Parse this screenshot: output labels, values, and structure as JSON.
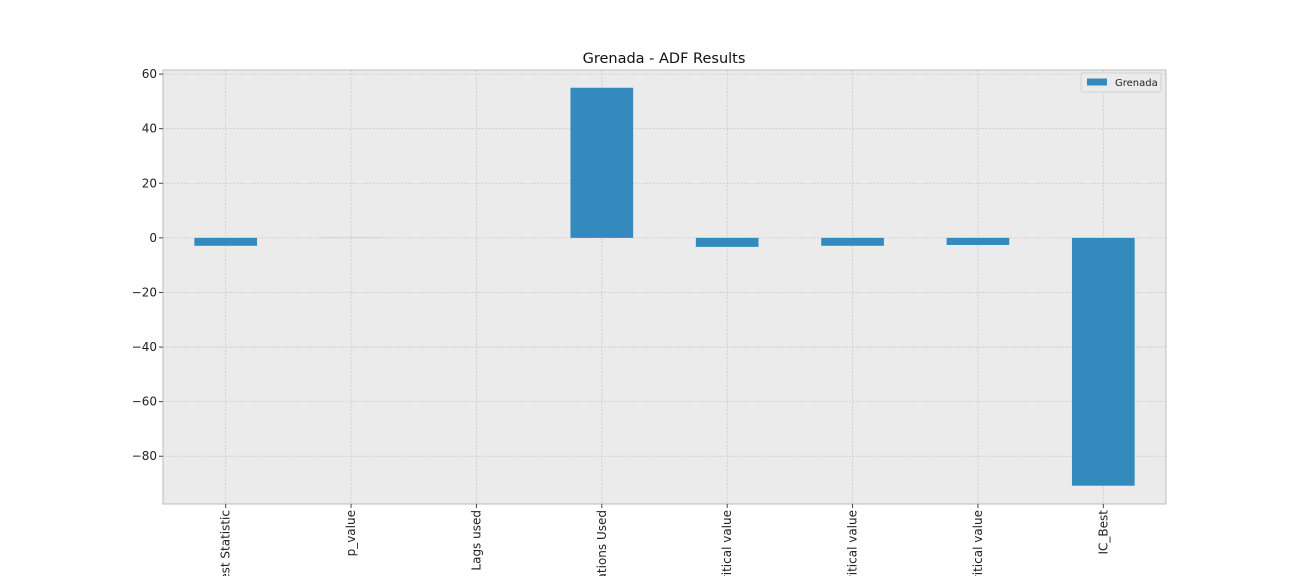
{
  "chart_data": {
    "type": "bar",
    "title": "Grenada - ADF Results",
    "xlabel": "",
    "ylabel": "",
    "categories": [
      "Test Statistic",
      "p_value",
      "Lags used",
      "Observations Used",
      "Critical value",
      "Critical value",
      "Critical value",
      "IC_Best"
    ],
    "category_labels_visible": [
      "est Statistic",
      "p_value",
      "Lags used",
      "ations Used",
      "ritical value",
      "ritical value",
      "ritical value",
      "IC_Best"
    ],
    "series": [
      {
        "name": "Grenada",
        "color": "#348abd",
        "values": [
          -2.9,
          0.05,
          0.0,
          55.0,
          -3.3,
          -2.9,
          -2.6,
          -90.8
        ]
      }
    ],
    "ylim": [
      -97.5,
      61.5
    ],
    "yticks": [
      60,
      40,
      20,
      0,
      -20,
      -40,
      -60,
      -80
    ],
    "ytick_labels": [
      "60",
      "40",
      "20",
      "0",
      "−20",
      "−40",
      "−60",
      "−80"
    ],
    "grid": true,
    "legend": "top-right",
    "colors": {
      "background": "#ebebeb",
      "grid": "#c9c9c9",
      "frame": "#bcbcbc",
      "bar": "#348abd"
    }
  }
}
